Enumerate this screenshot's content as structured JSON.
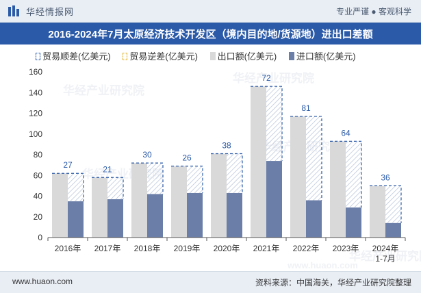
{
  "header": {
    "logo_text": "华经情报网",
    "tagline": "专业严谨 ● 客观科学"
  },
  "title": "2016-2024年7月太原经济技术开发区（境内目的地/货源地）进出口差额",
  "watermark": "华经产业研究院",
  "watermark_url": "www.huaon.com",
  "footer": {
    "website": "www.huaon.com",
    "source": "资料来源：中国海关，华经产业研究院整理"
  },
  "chart_data": {
    "type": "bar",
    "categories": [
      "2016年",
      "2017年",
      "2018年",
      "2019年",
      "2020年",
      "2021年",
      "2022年",
      "2023年",
      "2024年\n1-7月"
    ],
    "series": [
      {
        "name": "贸易顺差(亿美元)",
        "values": [
          27,
          21,
          30,
          26,
          38,
          72,
          81,
          64,
          36
        ],
        "color": "#2a5aa8"
      },
      {
        "name": "贸易逆差(亿美元)",
        "values": [
          0,
          0,
          0,
          0,
          0,
          0,
          0,
          0,
          0
        ],
        "color": "#e0b020"
      },
      {
        "name": "出口额(亿美元)",
        "values": [
          62,
          58,
          72,
          69,
          81,
          146,
          117,
          93,
          50
        ],
        "color": "#d9d9d9"
      },
      {
        "name": "进口额(亿美元)",
        "values": [
          35,
          37,
          42,
          43,
          43,
          74,
          36,
          29,
          14
        ],
        "color": "#6a7ea8"
      }
    ],
    "ylim": [
      0,
      160
    ],
    "yticks": [
      0,
      20,
      40,
      60,
      80,
      100,
      120,
      140,
      160
    ],
    "legend_position": "top-left",
    "grid": false
  }
}
